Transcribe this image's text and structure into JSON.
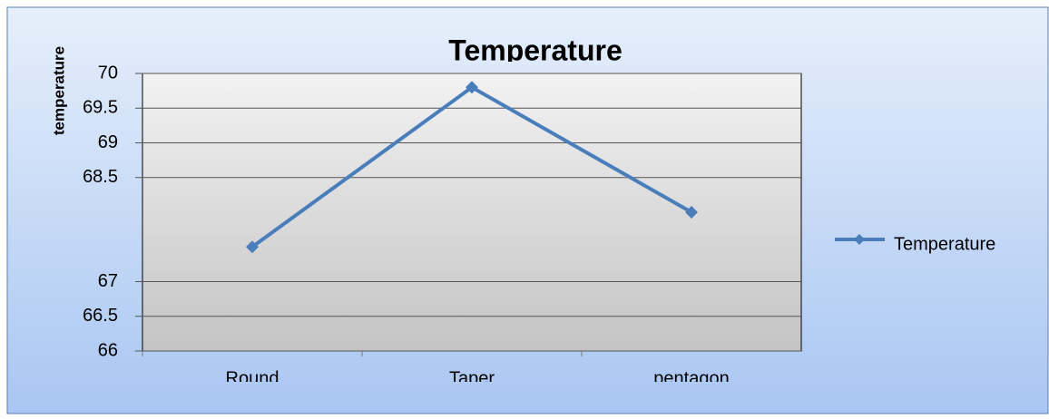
{
  "chart_data": {
    "type": "line",
    "title": "Temperature",
    "y_label": "temperature",
    "categories": [
      "Round",
      "Taper",
      "pentagon"
    ],
    "series": [
      {
        "name": "Temperature",
        "color": "#4a7ebb",
        "values": [
          67.5,
          69.8,
          68.0
        ]
      }
    ],
    "ylim": [
      66,
      70
    ],
    "yticks": [
      70,
      69.5,
      69,
      68.5,
      67,
      66.5,
      66
    ],
    "grid": true,
    "legend": "right"
  }
}
